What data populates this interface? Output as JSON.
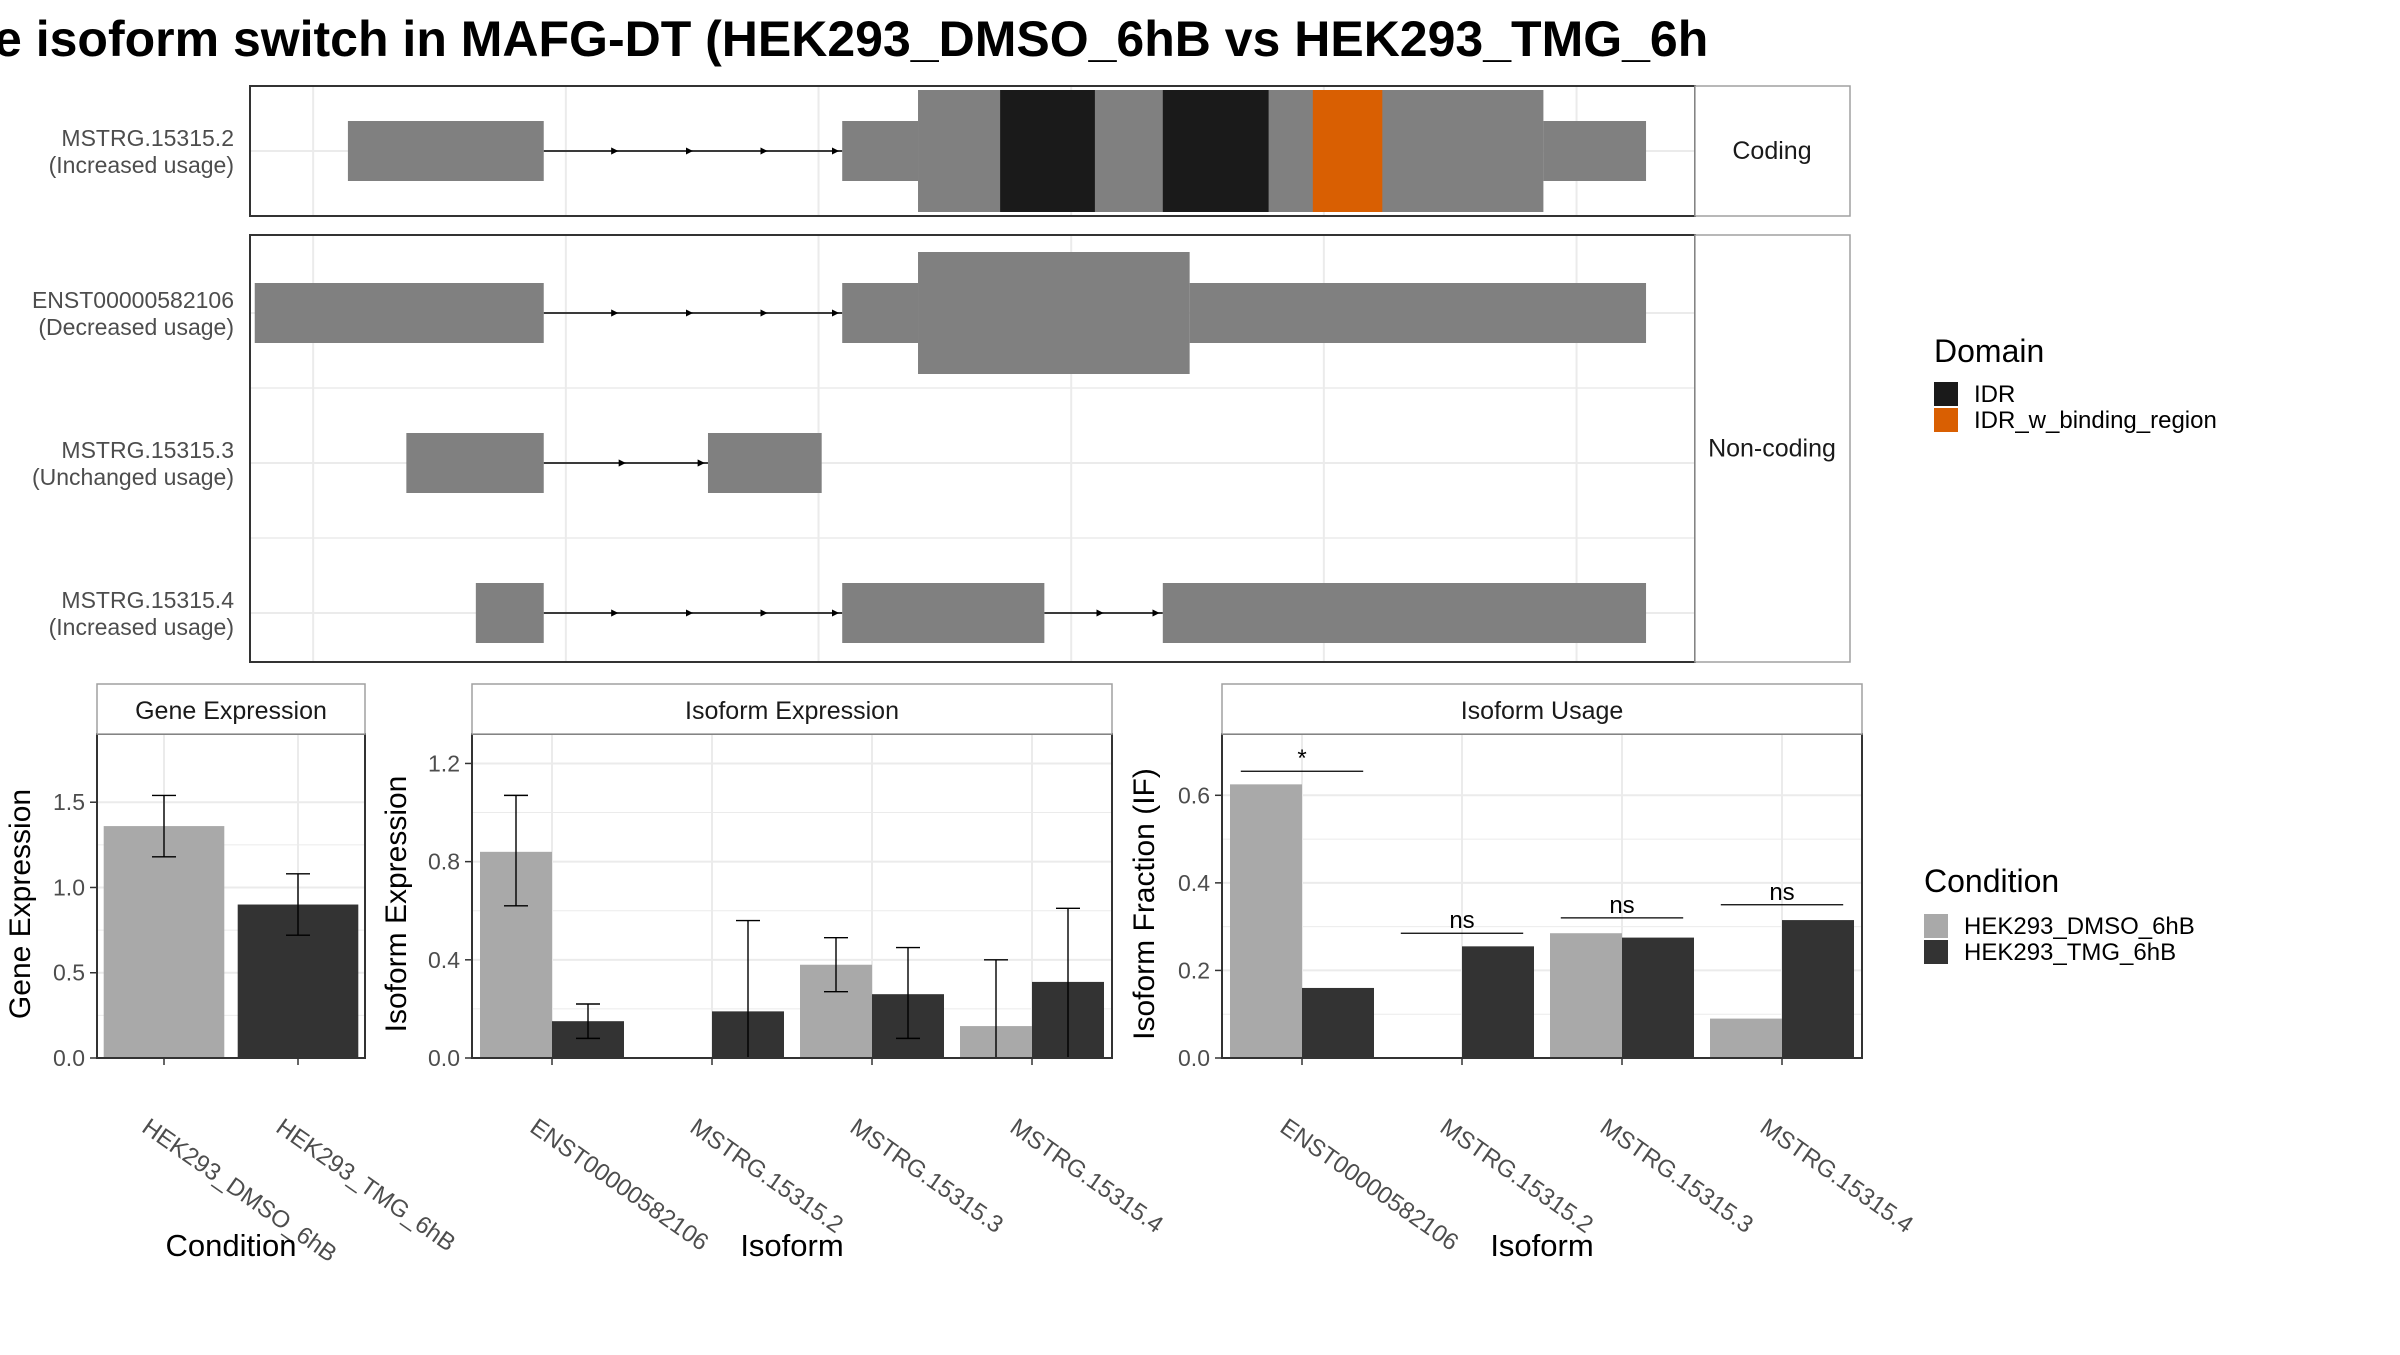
{
  "title": "e isoform switch in MAFG-DT (HEK293_DMSO_6hB vs HEK293_TMG_6h",
  "colors": {
    "exon": "#808080",
    "IDR": "#1a1a1a",
    "IDR_w_binding_region": "#d95f02",
    "HEK293_DMSO_6hB": "#a9a9a9",
    "HEK293_TMG_6hB": "#333333",
    "panel_border": "#333333",
    "strip_border": "#a0a0a0",
    "grid": "#ebebeb"
  },
  "chart_data": [
    {
      "type": "gene-structure",
      "panels": [
        {
          "strip": "Coding",
          "isoforms": [
            {
              "name": "MSTRG.15315.2",
              "status": "(Increased usage)",
              "exons": [
                [
                  0.62,
                  1.86,
                  "thin"
                ],
                [
                  3.75,
                  4.23,
                  "thin"
                ],
                [
                  4.23,
                  8.19,
                  "thick"
                ],
                [
                  8.19,
                  8.84,
                  "thin"
                ]
              ],
              "domains": [
                [
                  4.75,
                  5.35,
                  "IDR"
                ],
                [
                  5.78,
                  6.45,
                  "IDR"
                ],
                [
                  6.73,
                  7.17,
                  "IDR_w_binding_region"
                ]
              ]
            }
          ]
        },
        {
          "strip": "Non-coding",
          "isoforms": [
            {
              "name": "ENST00000582106",
              "status": "(Decreased usage)",
              "exons": [
                [
                  0.03,
                  1.86,
                  "thin"
                ],
                [
                  3.75,
                  4.23,
                  "thin"
                ],
                [
                  4.23,
                  5.95,
                  "thick"
                ],
                [
                  5.95,
                  8.84,
                  "thin"
                ]
              ],
              "domains": []
            },
            {
              "name": "MSTRG.15315.3",
              "status": "(Unchanged usage)",
              "exons": [
                [
                  0.99,
                  1.86,
                  "thin"
                ],
                [
                  2.9,
                  3.62,
                  "thin"
                ]
              ],
              "domains": []
            },
            {
              "name": "MSTRG.15315.4",
              "status": "(Increased usage)",
              "exons": [
                [
                  1.43,
                  1.86,
                  "thin"
                ],
                [
                  3.75,
                  5.03,
                  "thin"
                ],
                [
                  5.78,
                  8.84,
                  "thin"
                ]
              ],
              "domains": []
            }
          ]
        }
      ],
      "legend": {
        "title": "Domain",
        "items": [
          "IDR",
          "IDR_w_binding_region"
        ]
      }
    },
    {
      "type": "bar",
      "strip": "Gene Expression",
      "xlabel": "Condition",
      "ylabel": "Gene Expression",
      "ylim": [
        0,
        1.9
      ],
      "yticks": [
        "0.0",
        "0.5",
        "1.0",
        "1.5"
      ],
      "categories": [
        "HEK293_DMSO_6hB",
        "HEK293_TMG_6hB"
      ],
      "values": [
        1.36,
        0.9
      ],
      "err_low": [
        1.18,
        0.72
      ],
      "err_high": [
        1.54,
        1.08
      ]
    },
    {
      "type": "bar",
      "strip": "Isoform Expression",
      "xlabel": "Isoform",
      "ylabel": "Isoform Expression",
      "ylim": [
        0,
        1.32
      ],
      "yticks": [
        "0.0",
        "0.4",
        "0.8",
        "1.2"
      ],
      "categories": [
        "ENST00000582106",
        "MSTRG.15315.2",
        "MSTRG.15315.3",
        "MSTRG.15315.4"
      ],
      "series": [
        {
          "name": "HEK293_DMSO_6hB",
          "values": [
            0.84,
            0.0,
            0.38,
            0.13
          ],
          "err_low": [
            0.62,
            0.0,
            0.27,
            0.0
          ],
          "err_high": [
            1.07,
            0.0,
            0.49,
            0.4
          ]
        },
        {
          "name": "HEK293_TMG_6hB",
          "values": [
            0.15,
            0.19,
            0.26,
            0.31
          ],
          "err_low": [
            0.08,
            0.0,
            0.08,
            0.0
          ],
          "err_high": [
            0.22,
            0.56,
            0.45,
            0.61
          ]
        }
      ]
    },
    {
      "type": "bar",
      "strip": "Isoform Usage",
      "xlabel": "Isoform",
      "ylabel": "Isoform Fraction (IF)",
      "ylim": [
        0,
        0.74
      ],
      "yticks": [
        "0.0",
        "0.2",
        "0.4",
        "0.6"
      ],
      "categories": [
        "ENST00000582106",
        "MSTRG.15315.2",
        "MSTRG.15315.3",
        "MSTRG.15315.4"
      ],
      "series": [
        {
          "name": "HEK293_DMSO_6hB",
          "values": [
            0.625,
            0.0,
            0.285,
            0.09
          ]
        },
        {
          "name": "HEK293_TMG_6hB",
          "values": [
            0.16,
            0.255,
            0.275,
            0.315
          ]
        }
      ],
      "significance": [
        "*",
        "ns",
        "ns",
        "ns"
      ],
      "sig_y": [
        0.655,
        0.285,
        0.32,
        0.35
      ]
    }
  ],
  "condition_legend": {
    "title": "Condition",
    "items": [
      "HEK293_DMSO_6hB",
      "HEK293_TMG_6hB"
    ]
  }
}
